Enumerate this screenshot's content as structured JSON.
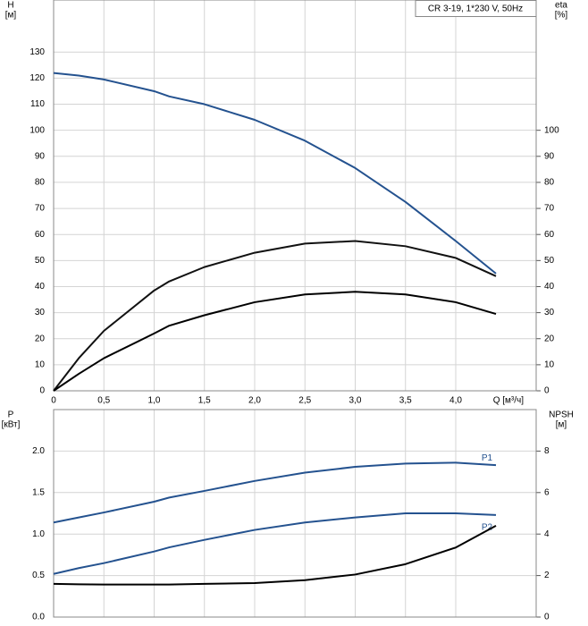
{
  "chart_data": [
    {
      "type": "line",
      "title": "CR 3-19, 1*230 V, 50Hz",
      "ylabel": [
        "H",
        "[м]"
      ],
      "y2label": [
        "eta",
        "[%]"
      ],
      "xlabel": "Q [м³/ч]",
      "x": [
        0,
        0.25,
        0.5,
        1,
        1.15,
        1.5,
        2,
        2.5,
        3,
        3.5,
        4,
        4.4
      ],
      "xlim": [
        0,
        4.8
      ],
      "xticks": [
        0,
        {
          "value": 0.5,
          "label": "0,5"
        },
        {
          "value": 1,
          "label": "1,0"
        },
        {
          "value": 1.5,
          "label": "1,5"
        },
        {
          "value": 2,
          "label": "2,0"
        },
        {
          "value": 2.5,
          "label": "2,5"
        },
        {
          "value": 3,
          "label": "3,0"
        },
        {
          "value": 3.5,
          "label": "3,5"
        },
        {
          "value": 4,
          "label": "4,0"
        }
      ],
      "ylim": [
        0,
        150
      ],
      "yticks": [
        0,
        10,
        20,
        30,
        40,
        50,
        60,
        70,
        80,
        90,
        100,
        110,
        120,
        130
      ],
      "y2lim": [
        0,
        150
      ],
      "y2ticks": [
        0,
        10,
        20,
        30,
        40,
        50,
        60,
        70,
        80,
        90,
        100
      ],
      "grid": true,
      "series": [
        {
          "color": "#24528f",
          "values": [
            122,
            121,
            119.5,
            115,
            113,
            110,
            104,
            96,
            85.5,
            72.5,
            57.5,
            45
          ]
        },
        {
          "color": "#111111",
          "axis": "y2",
          "values": [
            0,
            12.5,
            23,
            38.5,
            42,
            47.5,
            53,
            56.5,
            57.5,
            55.5,
            51,
            44
          ]
        },
        {
          "color": "#000000",
          "axis": "y2",
          "values": [
            0,
            6.5,
            12.5,
            22,
            25,
            29,
            34,
            37,
            38,
            37,
            34,
            29.5
          ]
        }
      ]
    },
    {
      "type": "line",
      "ylabel": [
        "P",
        "[кВт]"
      ],
      "y2label": [
        "NPSH",
        "[м]"
      ],
      "x": [
        0,
        0.25,
        0.5,
        1,
        1.15,
        1.5,
        2,
        2.5,
        3,
        3.5,
        4,
        4.4
      ],
      "xlim": [
        0,
        4.8
      ],
      "ylim": [
        0,
        2.5
      ],
      "yticks": [
        {
          "value": 0,
          "label": "0.0"
        },
        0.5,
        {
          "value": 1,
          "label": "1.0"
        },
        1.5,
        {
          "value": 2,
          "label": "2.0"
        }
      ],
      "y2lim": [
        0,
        10
      ],
      "y2ticks": [
        0,
        2,
        4,
        6,
        8
      ],
      "grid": true,
      "series": [
        {
          "name": "P1",
          "color": "#24528f",
          "values": [
            1.14,
            1.2,
            1.26,
            1.39,
            1.44,
            1.52,
            1.64,
            1.74,
            1.81,
            1.85,
            1.86,
            1.83
          ]
        },
        {
          "name": "P2",
          "color": "#24528f",
          "values": [
            0.52,
            0.59,
            0.65,
            0.79,
            0.84,
            0.93,
            1.05,
            1.14,
            1.2,
            1.25,
            1.25,
            1.23
          ]
        },
        {
          "color": "#000000",
          "axis": "y2",
          "values": [
            1.6,
            1.58,
            1.57,
            1.57,
            1.57,
            1.6,
            1.64,
            1.78,
            2.05,
            2.55,
            3.35,
            4.4
          ]
        }
      ]
    }
  ]
}
